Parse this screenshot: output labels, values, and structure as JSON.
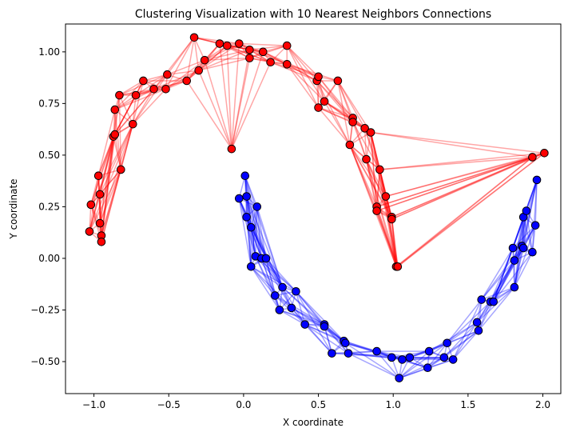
{
  "chart_data": {
    "type": "scatter",
    "title": "Clustering Visualization with 10 Nearest Neighbors Connections",
    "xlabel": "X coordinate",
    "ylabel": "Y coordinate",
    "xlim": [
      -1.19,
      2.12
    ],
    "ylim": [
      -0.655,
      1.135
    ],
    "xticks": [
      -1.0,
      -0.5,
      0.0,
      0.5,
      1.0,
      1.5,
      2.0
    ],
    "xtick_labels": [
      "−1.0",
      "−0.5",
      "0.0",
      "0.5",
      "1.0",
      "1.5",
      "2.0"
    ],
    "yticks": [
      -0.5,
      -0.25,
      0.0,
      0.25,
      0.5,
      0.75,
      1.0
    ],
    "ytick_labels": [
      "−0.50",
      "−0.25",
      "0.00",
      "0.25",
      "0.50",
      "0.75",
      "1.00"
    ],
    "grid": false,
    "neighbors": 10,
    "series": [
      {
        "color": "#ff0000",
        "edge_color": "#ff0000",
        "points": [
          [
            -1.03,
            0.13
          ],
          [
            -1.02,
            0.26
          ],
          [
            -0.97,
            0.4
          ],
          [
            -0.96,
            0.31
          ],
          [
            -0.96,
            0.17
          ],
          [
            -0.95,
            0.11
          ],
          [
            -0.95,
            0.08
          ],
          [
            -0.87,
            0.59
          ],
          [
            -0.86,
            0.72
          ],
          [
            -0.86,
            0.6
          ],
          [
            -0.83,
            0.79
          ],
          [
            -0.82,
            0.43
          ],
          [
            -0.74,
            0.65
          ],
          [
            -0.72,
            0.79
          ],
          [
            -0.67,
            0.86
          ],
          [
            -0.6,
            0.82
          ],
          [
            -0.52,
            0.82
          ],
          [
            -0.51,
            0.89
          ],
          [
            -0.38,
            0.86
          ],
          [
            -0.33,
            1.07
          ],
          [
            -0.3,
            0.91
          ],
          [
            -0.26,
            0.96
          ],
          [
            -0.16,
            1.04
          ],
          [
            -0.11,
            1.03
          ],
          [
            -0.08,
            0.53
          ],
          [
            -0.03,
            1.04
          ],
          [
            0.04,
            0.97
          ],
          [
            0.04,
            1.01
          ],
          [
            0.13,
            1.0
          ],
          [
            0.18,
            0.95
          ],
          [
            0.29,
            0.94
          ],
          [
            0.29,
            1.03
          ],
          [
            0.49,
            0.86
          ],
          [
            0.5,
            0.88
          ],
          [
            0.5,
            0.73
          ],
          [
            0.54,
            0.76
          ],
          [
            0.63,
            0.86
          ],
          [
            0.71,
            0.55
          ],
          [
            0.73,
            0.68
          ],
          [
            0.73,
            0.66
          ],
          [
            0.81,
            0.63
          ],
          [
            0.82,
            0.48
          ],
          [
            0.85,
            0.61
          ],
          [
            0.89,
            0.25
          ],
          [
            0.89,
            0.23
          ],
          [
            0.91,
            0.43
          ],
          [
            0.95,
            0.3
          ],
          [
            0.99,
            0.2
          ],
          [
            0.99,
            0.19
          ],
          [
            1.02,
            -0.04
          ],
          [
            1.03,
            -0.04
          ],
          [
            1.93,
            0.49
          ],
          [
            2.01,
            0.51
          ]
        ]
      },
      {
        "color": "#0000ff",
        "edge_color": "#0000ff",
        "points": [
          [
            -0.03,
            0.29
          ],
          [
            0.01,
            0.4
          ],
          [
            0.02,
            0.3
          ],
          [
            0.02,
            0.2
          ],
          [
            0.05,
            0.15
          ],
          [
            0.05,
            -0.04
          ],
          [
            0.08,
            0.01
          ],
          [
            0.09,
            0.25
          ],
          [
            0.12,
            0.0
          ],
          [
            0.15,
            0.0
          ],
          [
            0.21,
            -0.18
          ],
          [
            0.24,
            -0.25
          ],
          [
            0.26,
            -0.14
          ],
          [
            0.32,
            -0.24
          ],
          [
            0.35,
            -0.16
          ],
          [
            0.41,
            -0.32
          ],
          [
            0.54,
            -0.32
          ],
          [
            0.54,
            -0.33
          ],
          [
            0.59,
            -0.46
          ],
          [
            0.67,
            -0.4
          ],
          [
            0.68,
            -0.41
          ],
          [
            0.7,
            -0.46
          ],
          [
            0.89,
            -0.45
          ],
          [
            0.99,
            -0.48
          ],
          [
            1.04,
            -0.58
          ],
          [
            1.06,
            -0.49
          ],
          [
            1.11,
            -0.48
          ],
          [
            1.23,
            -0.53
          ],
          [
            1.24,
            -0.45
          ],
          [
            1.34,
            -0.48
          ],
          [
            1.36,
            -0.41
          ],
          [
            1.4,
            -0.49
          ],
          [
            1.56,
            -0.31
          ],
          [
            1.57,
            -0.35
          ],
          [
            1.59,
            -0.2
          ],
          [
            1.65,
            -0.21
          ],
          [
            1.67,
            -0.21
          ],
          [
            1.8,
            0.05
          ],
          [
            1.81,
            -0.01
          ],
          [
            1.81,
            -0.14
          ],
          [
            1.86,
            0.06
          ],
          [
            1.87,
            0.05
          ],
          [
            1.87,
            0.2
          ],
          [
            1.89,
            0.23
          ],
          [
            1.93,
            0.03
          ],
          [
            1.95,
            0.16
          ],
          [
            1.96,
            0.38
          ]
        ]
      }
    ]
  }
}
